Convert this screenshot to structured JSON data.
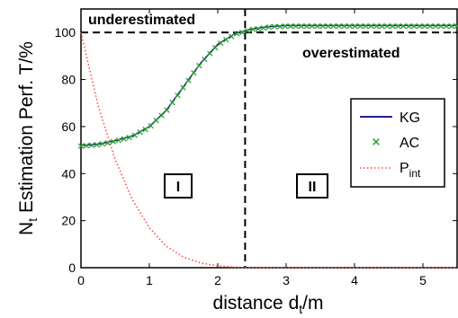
{
  "chart_data": {
    "type": "line",
    "xlabel": {
      "main": "distance d",
      "sub": "t",
      "unit": "/m"
    },
    "ylabel": {
      "main": "N",
      "sub": "t",
      "rest": " Estimation Perf. T/%"
    },
    "xlim": [
      0,
      5.5
    ],
    "ylim": [
      0,
      110
    ],
    "x_ticks": [
      0,
      1,
      2,
      3,
      4,
      5
    ],
    "y_ticks": [
      0,
      20,
      40,
      60,
      80,
      100
    ],
    "grid": false,
    "legend_position": "right",
    "x": [
      0,
      0.25,
      0.5,
      0.75,
      1.0,
      1.25,
      1.5,
      1.75,
      2.0,
      2.25,
      2.5,
      2.75,
      3.0,
      3.5,
      4.0,
      4.5,
      5.0,
      5.5
    ],
    "series": [
      {
        "name": "KG",
        "style": "solid",
        "color": "#1f1f8f",
        "values": [
          52,
          52.5,
          54,
          56,
          60,
          67,
          77,
          87,
          95,
          99.5,
          101.5,
          102.5,
          103,
          103,
          103,
          103,
          103,
          103
        ]
      },
      {
        "name": "AC",
        "style": "x-markers",
        "color": "#2ca02c",
        "values": [
          52,
          52.5,
          54,
          56,
          60,
          67,
          77,
          87,
          95,
          99.5,
          101.5,
          102.5,
          103,
          103,
          103,
          103,
          103,
          103
        ]
      },
      {
        "name": "P",
        "name_sub": "int",
        "style": "dotted",
        "color": "#ff4444",
        "values": [
          100,
          69,
          46,
          29,
          17,
          9,
          4.5,
          2,
          0.8,
          0.2,
          0,
          0,
          0,
          0,
          0,
          0,
          0,
          0
        ]
      }
    ],
    "reference_lines": {
      "horizontal_y": 100,
      "vertical_x": 2.4
    },
    "annotations": {
      "underestimated": "underestimated",
      "overestimated": "overestimated",
      "region1": "I",
      "region2": "II"
    }
  }
}
